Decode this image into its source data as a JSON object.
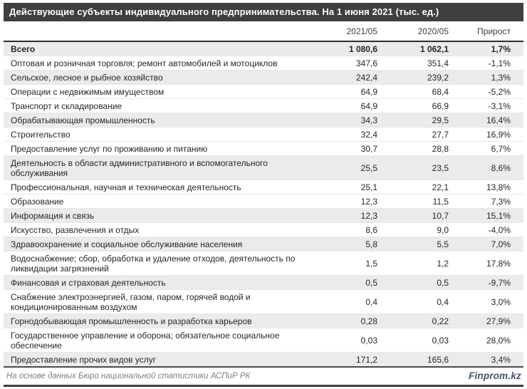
{
  "title": "Действующие субъекты индивидуального предпринимательства. На 1 июня 2021 (тыс. ед.)",
  "chart_data": {
    "type": "table",
    "title": "Действующие субъекты индивидуального предпринимательства. На 1 июня 2021 (тыс. ед.)",
    "columns": [
      "2021/05",
      "2020/05",
      "Прирост"
    ],
    "rows": [
      {
        "label": "Всего",
        "v2021": "1 080,6",
        "v2020": "1 062,1",
        "growth": "1,7%",
        "bold": true,
        "shaded": true
      },
      {
        "label": "Оптовая и розничная торговля; ремонт автомобилей и мотоциклов",
        "v2021": "347,6",
        "v2020": "351,4",
        "growth": "-1,1%",
        "bold": false,
        "shaded": false
      },
      {
        "label": "Сельское, лесное и рыбное хозяйство",
        "v2021": "242,4",
        "v2020": "239,2",
        "growth": "1,3%",
        "bold": false,
        "shaded": true
      },
      {
        "label": "Операции с недвижимым имуществом",
        "v2021": "64,9",
        "v2020": "68,4",
        "growth": "-5,2%",
        "bold": false,
        "shaded": false
      },
      {
        "label": "Транспорт и складирование",
        "v2021": "64,9",
        "v2020": "66,9",
        "growth": "-3,1%",
        "bold": false,
        "shaded": false
      },
      {
        "label": "Обрабатывающая промышленность",
        "v2021": "34,3",
        "v2020": "29,5",
        "growth": "16,4%",
        "bold": false,
        "shaded": true
      },
      {
        "label": "Строительство",
        "v2021": "32,4",
        "v2020": "27,7",
        "growth": "16,9%",
        "bold": false,
        "shaded": false
      },
      {
        "label": "Предоставление услуг по проживанию и питанию",
        "v2021": "30,7",
        "v2020": "28,8",
        "growth": "6,7%",
        "bold": false,
        "shaded": false
      },
      {
        "label": "Деятельность в области административного и вспомогательного обслуживания",
        "v2021": "25,5",
        "v2020": "23,5",
        "growth": "8,6%",
        "bold": false,
        "shaded": true
      },
      {
        "label": "Профессиональная, научная и техническая деятельность",
        "v2021": "25,1",
        "v2020": "22,1",
        "growth": "13,8%",
        "bold": false,
        "shaded": false
      },
      {
        "label": "Образование",
        "v2021": "12,3",
        "v2020": "11,5",
        "growth": "7,3%",
        "bold": false,
        "shaded": false
      },
      {
        "label": "Информация и связь",
        "v2021": "12,3",
        "v2020": "10,7",
        "growth": "15,1%",
        "bold": false,
        "shaded": true
      },
      {
        "label": "Искусство, развлечения и отдых",
        "v2021": "8,6",
        "v2020": "9,0",
        "growth": "-4,0%",
        "bold": false,
        "shaded": false
      },
      {
        "label": "Здравоохранение и социальное обслуживание населения",
        "v2021": "5,8",
        "v2020": "5,5",
        "growth": "7,0%",
        "bold": false,
        "shaded": true
      },
      {
        "label": "Водоснабжение; сбор, обработка и удаление отходов, деятельность по ликвидации загрязнений",
        "v2021": "1,5",
        "v2020": "1,2",
        "growth": "17,8%",
        "bold": false,
        "shaded": false
      },
      {
        "label": "Финансовая и страховая деятельность",
        "v2021": "0,5",
        "v2020": "0,5",
        "growth": "-9,7%",
        "bold": false,
        "shaded": true
      },
      {
        "label": "Снабжение электроэнергией, газом, паром, горячей водой и кондиционированным воздухом",
        "v2021": "0,4",
        "v2020": "0,4",
        "growth": "3,0%",
        "bold": false,
        "shaded": false
      },
      {
        "label": "Горнодобывающая промышленность и разработка карьеров",
        "v2021": "0,28",
        "v2020": "0,22",
        "growth": "27,9%",
        "bold": false,
        "shaded": true
      },
      {
        "label": "Государственное управление и оборона; обязательное социальное обеспечение",
        "v2021": "0,03",
        "v2020": "0,03",
        "growth": "28,0%",
        "bold": false,
        "shaded": false
      },
      {
        "label": "Предоставление прочих видов услуг",
        "v2021": "171,2",
        "v2020": "165,6",
        "growth": "3,4%",
        "bold": false,
        "shaded": true
      }
    ]
  },
  "footer": {
    "source": "На основе данных Бюро национальной статистики АСПиР РК",
    "brand": "Finprom.kz"
  },
  "colors": {
    "title_bar": "#3f3f3f",
    "shaded_row": "#ebebeb",
    "brand": "#44546a"
  }
}
